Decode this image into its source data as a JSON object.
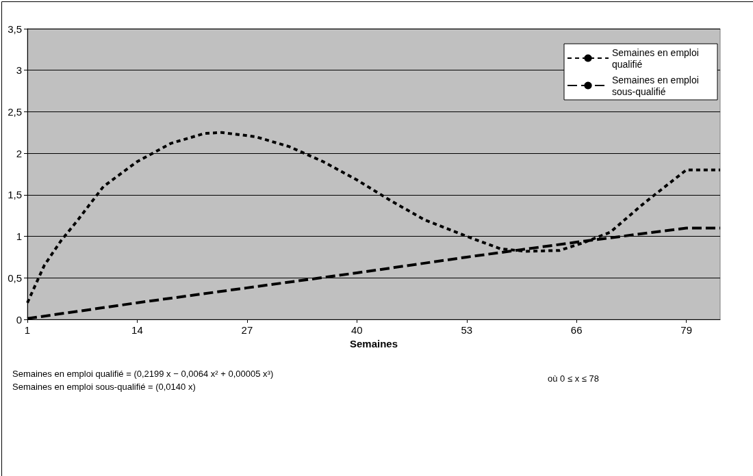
{
  "chart_data": {
    "type": "line",
    "xlabel": "Semaines",
    "xlim": [
      1,
      83
    ],
    "xticks": [
      1,
      14,
      27,
      40,
      53,
      66,
      79
    ],
    "ylim": [
      0,
      3.5
    ],
    "yticks": [
      0,
      {
        "value": 0.5,
        "label": "0,5"
      },
      1,
      {
        "value": 1.5,
        "label": "1,5"
      },
      2,
      {
        "value": 2.5,
        "label": "2,5"
      },
      3,
      {
        "value": 3.5,
        "label": "3,5"
      }
    ],
    "grid": "y",
    "legend": "top right",
    "marker": "none",
    "series": [
      {
        "name": "Semaines en emploi qualifié",
        "color": "#000000",
        "line_style": "dotted",
        "x": [
          1,
          3,
          5,
          7,
          10,
          14,
          18,
          22,
          24,
          28,
          32,
          36,
          40,
          44,
          48,
          53,
          57,
          60,
          64,
          67,
          70,
          74,
          79,
          83
        ],
        "values": [
          0.2,
          0.65,
          0.95,
          1.2,
          1.6,
          1.9,
          2.12,
          2.24,
          2.25,
          2.2,
          2.08,
          1.9,
          1.68,
          1.43,
          1.2,
          1.0,
          0.85,
          0.82,
          0.83,
          0.93,
          1.05,
          1.4,
          1.8,
          1.8
        ]
      },
      {
        "name": "Semaines en emploi sous-qualifié",
        "color": "#000000",
        "line_style": "dashed",
        "x": [
          1,
          14,
          27,
          40,
          53,
          66,
          79,
          83
        ],
        "values": [
          0.01,
          0.2,
          0.38,
          0.56,
          0.75,
          0.93,
          1.1,
          1.1
        ]
      }
    ],
    "annotations": [
      "Semaines en emploi qualifié = (0,2199 x − 0,0064 x² + 0,00005 x³)",
      "Semaines en emploi sous-qualifié = (0,0140 x)",
      "où 0 ≤ x ≤ 78"
    ]
  }
}
